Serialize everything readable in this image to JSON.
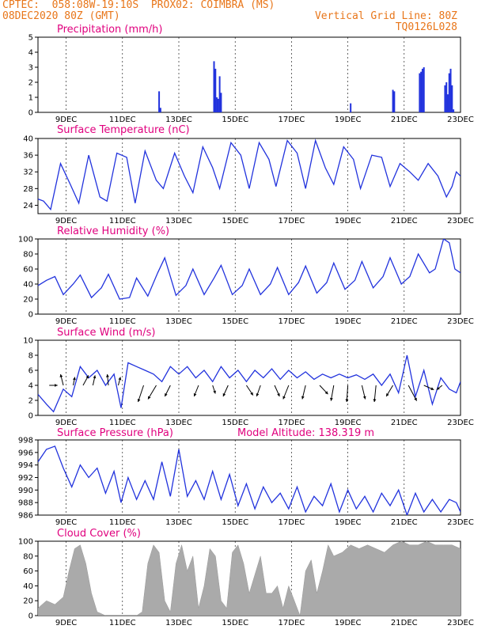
{
  "header": {
    "line1_left": "CPTEC:  058:08W-19:10S  PROX02: COIMBRA (MS)",
    "line2_left": "08DEC2020 80Z (GMT)",
    "line2_right": "Vertical Grid Line: 80Z",
    "line3_right": "TQ0126L028"
  },
  "colors": {
    "line": "#2233dd",
    "bar": "#2233dd",
    "cloud": "#aaaaaa",
    "title": "#e0007e",
    "header": "#e8761a"
  },
  "x_axis": {
    "ticks": [
      "9DEC",
      "11DEC",
      "13DEC",
      "15DEC",
      "17DEC",
      "19DEC",
      "21DEC",
      "23DEC"
    ],
    "tick_days": [
      9,
      11,
      13,
      15,
      17,
      19,
      21,
      23
    ],
    "range_days": [
      8.0,
      23.0
    ]
  },
  "chart_data": [
    {
      "type": "bar",
      "title": "Precipitation  (mm/h)",
      "ylim": [
        0,
        5
      ],
      "yticks": [
        0,
        1,
        2,
        3,
        4,
        5
      ],
      "x_days": [
        12.3,
        12.35,
        14.25,
        14.3,
        14.35,
        14.4,
        14.45,
        14.5,
        19.1,
        20.6,
        20.65,
        21.55,
        21.6,
        21.65,
        21.7,
        22.45,
        22.5,
        22.55,
        22.6,
        22.65,
        22.7,
        22.75
      ],
      "values": [
        1.4,
        0.3,
        3.4,
        2.9,
        1.0,
        0.9,
        2.4,
        1.3,
        0.6,
        1.5,
        1.4,
        2.6,
        2.7,
        2.9,
        3.0,
        1.8,
        2.0,
        1.2,
        2.6,
        2.9,
        1.8,
        0.2
      ]
    },
    {
      "type": "line",
      "title": "Surface Temperature (nC)",
      "ylim": [
        22,
        40
      ],
      "yticks": [
        24,
        28,
        32,
        36,
        40
      ],
      "x_days": [
        8.0,
        8.2,
        8.45,
        8.8,
        9.15,
        9.45,
        9.8,
        10.2,
        10.45,
        10.8,
        11.15,
        11.45,
        11.8,
        12.2,
        12.45,
        12.85,
        13.2,
        13.5,
        13.85,
        14.2,
        14.45,
        14.85,
        15.2,
        15.5,
        15.85,
        16.2,
        16.45,
        16.85,
        17.2,
        17.5,
        17.85,
        18.2,
        18.5,
        18.85,
        19.2,
        19.45,
        19.85,
        20.2,
        20.5,
        20.85,
        21.2,
        21.5,
        21.85,
        22.2,
        22.5,
        22.7,
        22.85,
        23.0
      ],
      "values": [
        25.5,
        25.0,
        23.0,
        34.0,
        29.0,
        24.5,
        36.0,
        26.0,
        25.0,
        36.5,
        35.5,
        24.5,
        37.0,
        30.0,
        28.0,
        36.5,
        31.0,
        27.0,
        38.0,
        33.0,
        28.0,
        39.0,
        36.0,
        28.0,
        39.0,
        35.0,
        28.5,
        39.5,
        36.5,
        28.0,
        39.5,
        33.0,
        29.0,
        38.0,
        35.0,
        28.0,
        36.0,
        35.5,
        28.5,
        34.0,
        32.0,
        30.0,
        34.0,
        31.0,
        26.0,
        28.5,
        32.0,
        31.0
      ]
    },
    {
      "type": "line",
      "title": "Relative Humidity (%)",
      "ylim": [
        0,
        100
      ],
      "yticks": [
        0,
        20,
        40,
        60,
        80,
        100
      ],
      "x_days": [
        8.0,
        8.3,
        8.6,
        8.9,
        9.25,
        9.5,
        9.9,
        10.25,
        10.5,
        10.9,
        11.25,
        11.5,
        11.9,
        12.25,
        12.5,
        12.9,
        13.25,
        13.5,
        13.9,
        14.25,
        14.5,
        14.9,
        15.25,
        15.5,
        15.9,
        16.25,
        16.5,
        16.9,
        17.25,
        17.5,
        17.9,
        18.25,
        18.5,
        18.9,
        19.25,
        19.5,
        19.9,
        20.25,
        20.5,
        20.9,
        21.2,
        21.5,
        21.9,
        22.1,
        22.4,
        22.6,
        22.8,
        23.0
      ],
      "values": [
        38.0,
        45.0,
        50.0,
        26.0,
        40.0,
        52.0,
        22.0,
        35.0,
        53.0,
        20.0,
        22.0,
        48.0,
        24.0,
        55.0,
        75.0,
        25.0,
        38.0,
        60.0,
        26.0,
        48.0,
        65.0,
        26.0,
        38.0,
        60.0,
        26.0,
        40.0,
        62.0,
        26.0,
        42.0,
        64.0,
        28.0,
        42.0,
        68.0,
        33.0,
        45.0,
        70.0,
        35.0,
        50.0,
        75.0,
        40.0,
        50.0,
        80.0,
        55.0,
        60.0,
        100.0,
        95.0,
        60.0,
        55.0
      ]
    },
    {
      "type": "line",
      "title": "Surface Wind (m/s)",
      "ylim": [
        0,
        10
      ],
      "yticks": [
        0,
        2,
        4,
        6,
        8,
        10
      ],
      "x_days": [
        8.0,
        8.3,
        8.55,
        8.9,
        9.2,
        9.5,
        9.8,
        10.1,
        10.4,
        10.7,
        10.95,
        11.2,
        11.5,
        11.8,
        12.1,
        12.4,
        12.7,
        13.0,
        13.3,
        13.6,
        13.9,
        14.2,
        14.5,
        14.8,
        15.1,
        15.4,
        15.7,
        16.0,
        16.3,
        16.6,
        16.9,
        17.2,
        17.5,
        17.8,
        18.1,
        18.4,
        18.7,
        19.0,
        19.3,
        19.6,
        19.9,
        20.2,
        20.5,
        20.8,
        21.1,
        21.4,
        21.7,
        22.0,
        22.3,
        22.6,
        22.85,
        23.0
      ],
      "values": [
        2.8,
        1.5,
        0.5,
        3.5,
        2.5,
        6.5,
        5.0,
        6.0,
        4.0,
        5.5,
        1.0,
        7.0,
        6.5,
        6.0,
        5.5,
        4.5,
        6.5,
        5.5,
        6.5,
        5.0,
        6.0,
        4.5,
        6.5,
        5.0,
        6.0,
        4.5,
        6.0,
        5.0,
        6.2,
        4.8,
        6.0,
        5.0,
        5.8,
        4.8,
        5.5,
        5.0,
        5.5,
        5.0,
        5.4,
        4.8,
        5.5,
        4.0,
        5.5,
        3.0,
        8.0,
        2.5,
        6.0,
        1.5,
        5.0,
        3.5,
        3.0,
        4.5
      ],
      "vectors": {
        "x_days": [
          8.4,
          8.9,
          9.25,
          9.6,
          9.95,
          10.5,
          10.85,
          11.75,
          12.2,
          12.7,
          13.7,
          14.2,
          14.75,
          15.4,
          15.9,
          16.4,
          16.9,
          17.5,
          18.0,
          18.5,
          19.0,
          19.5,
          20.0,
          20.6,
          21.15,
          21.7,
          22.35
        ],
        "u": [
          1.5,
          -0.5,
          0.3,
          1.0,
          0.4,
          -0.2,
          0.4,
          -1.0,
          -1.5,
          -1.0,
          -0.8,
          0.5,
          -0.9,
          1.2,
          -0.7,
          0.9,
          -1.0,
          -0.6,
          1.5,
          -0.5,
          -0.2,
          0.6,
          -0.3,
          -1.2,
          1.5,
          1.8,
          -1.0
        ],
        "v": [
          0.0,
          2.0,
          1.5,
          1.8,
          1.8,
          2.0,
          1.5,
          -3.0,
          -2.5,
          -2.0,
          -2.0,
          -1.5,
          -2.0,
          -1.8,
          -2.0,
          -2.0,
          -2.5,
          -2.5,
          -1.6,
          -2.8,
          -3.0,
          -2.5,
          -3.0,
          -2.0,
          -2.8,
          -0.8,
          -0.8
        ]
      }
    },
    {
      "type": "line",
      "title": "Surface Pressure (hPa)",
      "subtitle": "Model Altitude: 138.319 m",
      "ylim": [
        986,
        998
      ],
      "yticks": [
        986,
        988,
        990,
        992,
        994,
        996,
        998
      ],
      "x_days": [
        8.0,
        8.3,
        8.6,
        8.9,
        9.2,
        9.5,
        9.8,
        10.1,
        10.4,
        10.7,
        10.95,
        11.2,
        11.5,
        11.8,
        12.1,
        12.4,
        12.7,
        13.0,
        13.3,
        13.6,
        13.9,
        14.2,
        14.5,
        14.8,
        15.1,
        15.4,
        15.7,
        16.0,
        16.3,
        16.6,
        16.9,
        17.2,
        17.5,
        17.8,
        18.1,
        18.4,
        18.7,
        19.0,
        19.3,
        19.6,
        19.9,
        20.2,
        20.5,
        20.8,
        21.1,
        21.4,
        21.7,
        22.0,
        22.3,
        22.6,
        22.85,
        23.0
      ],
      "values": [
        994.5,
        996.5,
        997.0,
        993.5,
        990.5,
        994.0,
        992.0,
        993.5,
        989.5,
        993.0,
        988.0,
        992.0,
        988.5,
        991.5,
        988.5,
        994.5,
        989.0,
        996.5,
        989.0,
        991.5,
        988.5,
        993.0,
        988.5,
        992.5,
        987.5,
        991.0,
        987.0,
        990.5,
        988.0,
        989.5,
        987.0,
        990.5,
        986.5,
        989.0,
        987.5,
        991.0,
        986.5,
        990.0,
        987.0,
        989.0,
        986.5,
        989.5,
        987.5,
        990.0,
        986.0,
        989.5,
        986.5,
        988.5,
        986.5,
        988.5,
        988.0,
        986.5
      ]
    },
    {
      "type": "area",
      "title": "Cloud Cover (%)",
      "ylim": [
        0,
        100
      ],
      "yticks": [
        0,
        20,
        40,
        60,
        80,
        100
      ],
      "x_days": [
        8.0,
        8.3,
        8.6,
        8.9,
        9.1,
        9.3,
        9.5,
        9.7,
        9.9,
        10.1,
        10.4,
        10.8,
        11.2,
        11.5,
        11.7,
        11.9,
        12.1,
        12.3,
        12.5,
        12.7,
        12.9,
        13.1,
        13.3,
        13.5,
        13.7,
        13.9,
        14.1,
        14.3,
        14.5,
        14.7,
        14.9,
        15.1,
        15.3,
        15.5,
        15.7,
        15.9,
        16.1,
        16.3,
        16.5,
        16.7,
        16.9,
        17.1,
        17.3,
        17.5,
        17.7,
        17.9,
        18.1,
        18.3,
        18.5,
        18.8,
        19.1,
        19.4,
        19.7,
        20.0,
        20.3,
        20.6,
        20.9,
        21.2,
        21.5,
        21.8,
        22.1,
        22.4,
        22.7,
        23.0
      ],
      "values": [
        10,
        20,
        15,
        25,
        60,
        90,
        95,
        70,
        30,
        5,
        0,
        0,
        0,
        0,
        5,
        70,
        95,
        85,
        20,
        5,
        70,
        95,
        60,
        80,
        10,
        40,
        90,
        80,
        20,
        10,
        85,
        95,
        70,
        30,
        55,
        80,
        30,
        30,
        40,
        10,
        40,
        20,
        0,
        60,
        75,
        30,
        60,
        95,
        80,
        85,
        95,
        90,
        95,
        90,
        85,
        95,
        100,
        95,
        95,
        100,
        95,
        95,
        95,
        90
      ]
    }
  ]
}
